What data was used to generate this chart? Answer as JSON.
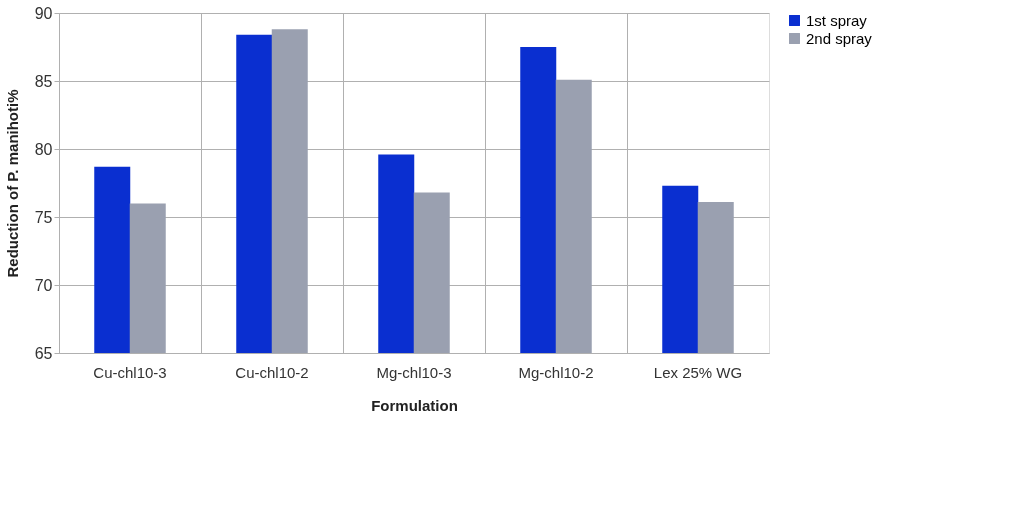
{
  "chart_data": {
    "type": "bar",
    "xlabel": "Formulation",
    "ylabel": "Reduction  of P. manihoti%",
    "categories": [
      "Cu-chl10-3",
      "Cu-chl10-2",
      "Mg-chl10-3",
      "Mg-chl10-2",
      "Lex 25% WG"
    ],
    "series": [
      {
        "name": "1st spray",
        "color": "#0a2fd0",
        "values": [
          78.7,
          88.4,
          79.6,
          87.5,
          77.3
        ]
      },
      {
        "name": "2nd spray",
        "color": "#9aa0b0",
        "values": [
          76.0,
          88.8,
          76.8,
          85.1,
          76.1
        ]
      }
    ],
    "ylim": [
      65,
      90
    ],
    "yticks": [
      65,
      70,
      75,
      80,
      85,
      90
    ],
    "grid": true,
    "legend": "right"
  }
}
